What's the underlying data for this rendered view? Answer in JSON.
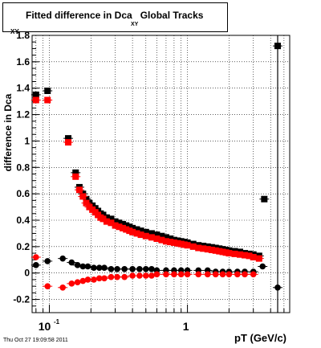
{
  "header": {
    "title": "Fitted difference in Dca",
    "title_sub": "XY",
    "title_suffix": "Global Tracks"
  },
  "footer": {
    "timestamp": "Thu Oct 27 19:09:58 2011"
  },
  "axes": {
    "xlabel": "pT (GeV/c)",
    "ylabel": "difference in Dca",
    "ylabel_sub": "XY"
  },
  "chart_data": {
    "type": "scatter",
    "title": "Fitted difference in Dca XY Global Tracks",
    "xlabel": "pT (GeV/c)",
    "ylabel": "difference in Dca XY",
    "x_scale": "log",
    "xlim": [
      0.075,
      5.5
    ],
    "ylim": [
      -0.3,
      1.8
    ],
    "grid": true,
    "x_ticks": [
      {
        "value": 0.1,
        "label": "10",
        "sup": "-1"
      },
      {
        "value": 1,
        "label": "1",
        "sup": ""
      }
    ],
    "y_ticks": [
      -0.2,
      0,
      0.2,
      0.4,
      0.6,
      0.8,
      1,
      1.2,
      1.4,
      1.6,
      1.8
    ],
    "y_tick_labels": [
      "-0.2",
      "0",
      "0.2",
      "0.4",
      "0.6",
      "0.8",
      "1",
      "1.2",
      "1.4",
      "1.6",
      "1.8"
    ],
    "series": [
      {
        "marker": "square",
        "color": "#000000",
        "x": [
          0.08,
          0.097,
          0.137,
          0.155,
          0.165,
          0.175,
          0.185,
          0.195,
          0.205,
          0.215,
          0.225,
          0.235,
          0.245,
          0.26,
          0.28,
          0.3,
          0.32,
          0.34,
          0.36,
          0.38,
          0.4,
          0.43,
          0.46,
          0.5,
          0.55,
          0.6,
          0.65,
          0.7,
          0.75,
          0.8,
          0.85,
          0.9,
          0.95,
          1.0,
          1.1,
          1.2,
          1.3,
          1.4,
          1.5,
          1.6,
          1.7,
          1.8,
          1.9,
          2.0,
          2.2,
          2.4,
          2.6,
          2.8,
          3.0,
          3.3,
          3.6,
          4.5
        ],
        "y": [
          1.35,
          1.38,
          1.02,
          0.76,
          0.65,
          0.6,
          0.56,
          0.53,
          0.51,
          0.49,
          0.47,
          0.45,
          0.44,
          0.42,
          0.41,
          0.39,
          0.38,
          0.37,
          0.36,
          0.35,
          0.34,
          0.33,
          0.32,
          0.31,
          0.3,
          0.29,
          0.28,
          0.27,
          0.26,
          0.25,
          0.245,
          0.24,
          0.235,
          0.23,
          0.22,
          0.21,
          0.205,
          0.2,
          0.195,
          0.19,
          0.185,
          0.18,
          0.175,
          0.17,
          0.165,
          0.16,
          0.15,
          0.145,
          0.14,
          0.13,
          0.56,
          1.72
        ]
      },
      {
        "marker": "square",
        "color": "#ff0000",
        "x": [
          0.08,
          0.097,
          0.137,
          0.155,
          0.165,
          0.175,
          0.185,
          0.195,
          0.205,
          0.215,
          0.225,
          0.235,
          0.245,
          0.26,
          0.28,
          0.3,
          0.32,
          0.34,
          0.36,
          0.38,
          0.4,
          0.43,
          0.46,
          0.5,
          0.55,
          0.6,
          0.65,
          0.7,
          0.75,
          0.8,
          0.85,
          0.9,
          0.95,
          1.0,
          1.1,
          1.2,
          1.3,
          1.4,
          1.5,
          1.6,
          1.7,
          1.8,
          1.9,
          2.0,
          2.2,
          2.4,
          2.6,
          2.8,
          3.0,
          3.3
        ],
        "y": [
          1.31,
          1.31,
          0.99,
          0.73,
          0.63,
          0.58,
          0.53,
          0.5,
          0.48,
          0.46,
          0.44,
          0.42,
          0.41,
          0.39,
          0.38,
          0.36,
          0.35,
          0.34,
          0.33,
          0.32,
          0.31,
          0.3,
          0.29,
          0.28,
          0.27,
          0.26,
          0.25,
          0.24,
          0.235,
          0.23,
          0.225,
          0.22,
          0.215,
          0.21,
          0.2,
          0.19,
          0.185,
          0.18,
          0.175,
          0.17,
          0.165,
          0.16,
          0.155,
          0.15,
          0.145,
          0.14,
          0.135,
          0.13,
          0.12,
          0.11
        ]
      },
      {
        "marker": "circle",
        "color": "#000000",
        "x": [
          0.08,
          0.097,
          0.125,
          0.145,
          0.16,
          0.175,
          0.19,
          0.21,
          0.23,
          0.25,
          0.28,
          0.31,
          0.35,
          0.4,
          0.45,
          0.5,
          0.55,
          0.6,
          0.7,
          0.8,
          0.9,
          1.0,
          1.2,
          1.4,
          1.6,
          1.8,
          2.0,
          2.3,
          2.6,
          3.0,
          3.5,
          4.5
        ],
        "y": [
          0.06,
          0.09,
          0.11,
          0.08,
          0.06,
          0.05,
          0.05,
          0.04,
          0.04,
          0.04,
          0.03,
          0.03,
          0.03,
          0.03,
          0.03,
          0.03,
          0.03,
          0.02,
          0.02,
          0.02,
          0.02,
          0.02,
          0.02,
          0.02,
          0.01,
          0.01,
          0.01,
          0.01,
          0.01,
          0.01,
          0.05,
          -0.11
        ]
      },
      {
        "marker": "circle",
        "color": "#ff0000",
        "x": [
          0.08,
          0.097,
          0.125,
          0.145,
          0.16,
          0.175,
          0.19,
          0.21,
          0.23,
          0.25,
          0.28,
          0.31,
          0.35,
          0.4,
          0.45,
          0.5,
          0.55,
          0.6,
          0.7,
          0.8,
          0.9,
          1.0,
          1.2,
          1.4,
          1.6,
          1.8,
          2.0,
          2.3,
          2.6,
          3.0
        ],
        "y": [
          0.12,
          -0.1,
          -0.11,
          -0.08,
          -0.07,
          -0.06,
          -0.05,
          -0.05,
          -0.04,
          -0.04,
          -0.03,
          -0.03,
          -0.03,
          -0.02,
          -0.02,
          -0.02,
          -0.02,
          -0.01,
          -0.01,
          -0.01,
          -0.01,
          -0.01,
          -0.01,
          -0.01,
          -0.01,
          -0.01,
          -0.01,
          -0.01,
          -0.01,
          -0.01
        ]
      }
    ]
  }
}
